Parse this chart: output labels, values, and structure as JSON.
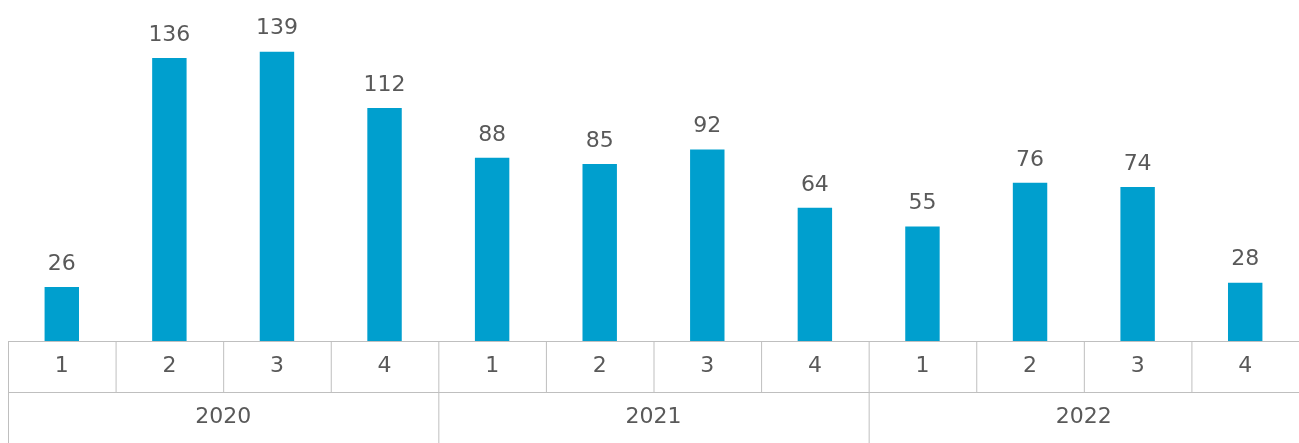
{
  "chart_data": {
    "type": "bar",
    "categories": [
      "1",
      "2",
      "3",
      "4",
      "1",
      "2",
      "3",
      "4",
      "1",
      "2",
      "3",
      "4"
    ],
    "series": [
      {
        "color": "#009fce",
        "values": [
          26,
          136,
          139,
          112,
          88,
          85,
          92,
          64,
          55,
          76,
          74,
          28
        ]
      }
    ],
    "annotations": [
      "2020",
      "2021",
      "2022"
    ],
    "data_labels": true,
    "legend": false
  }
}
